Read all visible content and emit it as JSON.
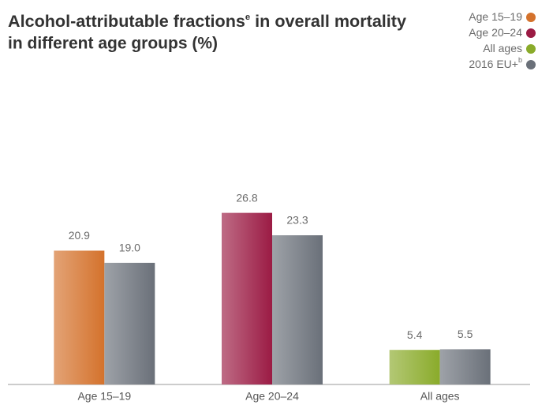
{
  "chart_data": {
    "type": "bar",
    "title": [
      "Alcohol-attributable fractions",
      "e",
      " in overall mortality",
      "in different age groups (%)"
    ],
    "categories": [
      "Age 15–19",
      "Age 20–24",
      "All ages"
    ],
    "series": [
      {
        "name": "Age 15–19",
        "color": "#d4722c",
        "values": [
          20.9,
          null,
          null
        ],
        "value_labels": [
          "20.9",
          null,
          null
        ]
      },
      {
        "name": "Age 20–24",
        "color": "#9b1b44",
        "values": [
          null,
          26.8,
          null
        ],
        "value_labels": [
          null,
          "26.8",
          null
        ]
      },
      {
        "name": "All ages",
        "color": "#8aab2a",
        "values": [
          null,
          null,
          5.4
        ],
        "value_labels": [
          null,
          null,
          "5.4"
        ]
      },
      {
        "name": "2016 EU+",
        "name_superscript": "b",
        "color": "#6a7079",
        "values": [
          19.0,
          23.3,
          5.5
        ],
        "value_labels": [
          "19.0",
          "23.3",
          "5.5"
        ]
      }
    ],
    "ylim": [
      0,
      36
    ],
    "legend": "top-right"
  }
}
